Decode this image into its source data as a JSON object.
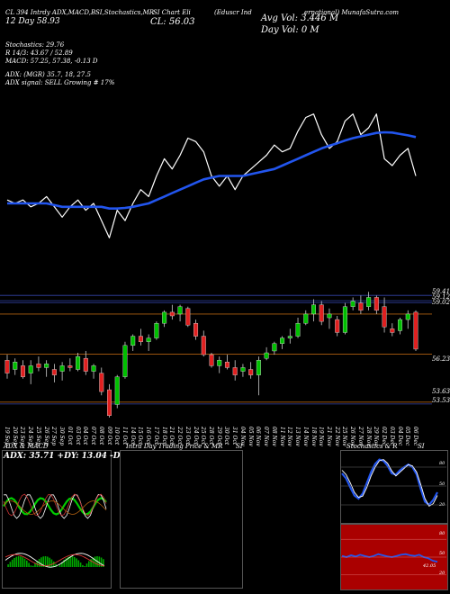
{
  "header": {
    "line1": "CL 394 Intrdy ADX,MACD,B",
    "line1b": "SI,Stochastics,MR",
    "line1c": "SI Chart Eli",
    "line1d": "(Eduscr Ind",
    "line1e": "ernational) MunafaSutra.com",
    "line2": "12 Day  58.93",
    "close": "CL: 56.03",
    "avg_vol": "Avg Vol: 3.446  M",
    "day_vol": "Day Vol: 0  M",
    "stoch": "Stochastics: 29.76",
    "stoch_r": "R 14/3: 43.67 / 52.89",
    "macd": "MACD: 57.25, 57.38, -0.13 D",
    "adx": "ADX:                 (MGR) 35.7, 18, 27.5",
    "adx_signal": "ADX  signal: SELL Growing # 17%"
  },
  "price_axis": [
    "59.41",
    "59.12",
    "59.02",
    "56.23",
    "53.63",
    "53.53"
  ],
  "date_labels": [
    "19 Sep",
    "20 Sep",
    "23 Sep",
    "24 Sep",
    "25 Sep",
    "26 Sep",
    "27 Sep",
    "30 Sep",
    "01 Oct",
    "03 Oct",
    "04 Oct",
    "07 Oct",
    "08 Oct",
    "09 Oct",
    "10 Oct",
    "11 Oct",
    "14 Oct",
    "15 Oct",
    "16 Oct",
    "17 Oct",
    "18 Oct",
    "21 Oct",
    "22 Oct",
    "23 Oct",
    "24 Oct",
    "25 Oct",
    "28 Oct",
    "29 Oct",
    "30 Oct",
    "31 Oct",
    "04 Nov",
    "05 Nov",
    "06 Nov",
    "07 Nov",
    "08 Nov",
    "11 Nov",
    "12 Nov",
    "13 Nov",
    "14 Nov",
    "18 Nov",
    "19 Nov",
    "21 Nov",
    "22 Nov",
    "25 Nov",
    "26 Nov",
    "27 Nov",
    "28 Nov",
    "29 Nov",
    "02 Dec",
    "03 Dec",
    "04 Dec",
    "05 Dec",
    "06 Dec"
  ],
  "panels": {
    "adx_title": "ADX  & MACD",
    "adx_values": "ADX: 35.71  +DY: 13.04  -DY: 27.54",
    "intraday_title": "Intra  Day Trading Price  & MR",
    "intraday_title_b": "SI",
    "stoch_title": "Stochastics & R",
    "stoch_title_b": "SI",
    "stoch_ticks": [
      "80",
      "50",
      "20"
    ],
    "rsi_ticks": [
      "80",
      "50",
      "20"
    ],
    "rsi_value": "42.05"
  },
  "colors": {
    "up": "#00c000",
    "down": "#e02020",
    "ma": "#2255ee",
    "orange": "#b06010"
  },
  "chart_data": [
    {
      "type": "candlestick",
      "series": [
        {
          "name": "",
          "values": []
        }
      ],
      "ohlc": [
        [
          55.9,
          56.2,
          54.9,
          55.2
        ],
        [
          55.4,
          56.0,
          55.1,
          55.8
        ],
        [
          55.6,
          55.9,
          54.9,
          55.0
        ],
        [
          55.2,
          55.9,
          54.6,
          55.6
        ],
        [
          55.7,
          56.1,
          55.3,
          55.5
        ],
        [
          55.5,
          55.9,
          55.0,
          55.7
        ],
        [
          55.4,
          55.7,
          54.7,
          55.1
        ],
        [
          55.3,
          55.8,
          54.8,
          55.6
        ],
        [
          55.6,
          56.0,
          55.3,
          55.5
        ],
        [
          55.4,
          56.3,
          55.3,
          56.1
        ],
        [
          56.0,
          56.4,
          55.1,
          55.3
        ],
        [
          55.3,
          55.7,
          54.9,
          55.6
        ],
        [
          55.2,
          55.5,
          54.0,
          54.2
        ],
        [
          54.3,
          54.6,
          52.8,
          52.9
        ],
        [
          53.5,
          55.1,
          53.3,
          55.0
        ],
        [
          55.0,
          56.9,
          54.9,
          56.7
        ],
        [
          56.7,
          57.3,
          56.4,
          57.2
        ],
        [
          57.2,
          57.6,
          56.7,
          56.9
        ],
        [
          56.9,
          57.3,
          56.4,
          57.1
        ],
        [
          57.1,
          58.0,
          57.0,
          57.9
        ],
        [
          57.9,
          58.6,
          57.7,
          58.5
        ],
        [
          58.5,
          58.9,
          58.1,
          58.3
        ],
        [
          58.4,
          58.9,
          58.0,
          58.8
        ],
        [
          58.7,
          58.8,
          57.7,
          57.8
        ],
        [
          57.9,
          58.1,
          57.0,
          57.2
        ],
        [
          57.2,
          57.5,
          56.1,
          56.2
        ],
        [
          56.2,
          56.3,
          55.5,
          55.6
        ],
        [
          55.6,
          56.1,
          55.2,
          55.9
        ],
        [
          55.8,
          56.2,
          55.4,
          55.5
        ],
        [
          55.5,
          55.9,
          54.8,
          55.1
        ],
        [
          55.3,
          55.7,
          55.0,
          55.5
        ],
        [
          55.4,
          55.8,
          54.9,
          55.1
        ],
        [
          55.1,
          56.1,
          54.0,
          55.9
        ],
        [
          56.0,
          56.6,
          55.9,
          56.3
        ],
        [
          56.4,
          56.9,
          56.2,
          56.8
        ],
        [
          56.8,
          57.2,
          56.5,
          57.1
        ],
        [
          57.1,
          57.6,
          56.8,
          57.2
        ],
        [
          57.2,
          58.2,
          57.1,
          57.9
        ],
        [
          57.9,
          58.6,
          57.8,
          58.4
        ],
        [
          58.4,
          59.2,
          58.0,
          58.9
        ],
        [
          58.9,
          59.1,
          57.8,
          58.0
        ],
        [
          58.2,
          58.7,
          57.6,
          58.4
        ],
        [
          58.1,
          58.3,
          57.2,
          57.4
        ],
        [
          57.4,
          59.0,
          57.3,
          58.8
        ],
        [
          58.8,
          59.3,
          58.6,
          59.1
        ],
        [
          59.0,
          59.4,
          58.4,
          58.6
        ],
        [
          58.8,
          59.6,
          58.6,
          59.3
        ],
        [
          59.3,
          59.4,
          58.4,
          58.6
        ],
        [
          58.8,
          59.3,
          57.4,
          57.7
        ],
        [
          57.6,
          57.9,
          57.2,
          57.4
        ],
        [
          57.5,
          58.2,
          57.3,
          58.1
        ],
        [
          58.1,
          58.6,
          57.6,
          58.4
        ],
        [
          58.5,
          58.6,
          56.4,
          56.5
        ]
      ]
    },
    {
      "type": "line",
      "series": [
        {
          "name": "",
          "values": [
            63,
            62,
            63,
            61,
            62,
            64,
            61,
            58,
            61,
            63,
            60,
            62,
            57,
            52,
            60,
            57,
            62,
            66,
            64,
            70,
            75,
            72,
            76,
            81,
            80,
            77,
            70,
            67,
            70,
            66,
            70,
            72,
            74,
            76,
            79,
            77,
            78,
            83,
            87,
            88,
            82,
            78,
            80,
            86,
            88,
            82,
            84,
            88,
            75,
            73,
            76,
            78,
            70
          ]
        },
        {
          "name": "",
          "values": [
            62,
            62,
            62,
            62,
            62,
            62,
            61.5,
            61,
            61,
            61,
            61,
            61,
            61,
            60.5,
            60.5,
            60.7,
            61,
            61.5,
            62,
            63,
            64,
            65,
            66,
            67,
            68,
            69,
            69.5,
            70,
            70,
            70,
            70,
            70.5,
            71,
            71.5,
            72,
            73,
            74,
            75,
            76,
            77,
            78,
            78.8,
            79.5,
            80.3,
            81,
            81.5,
            82,
            82.5,
            82.7,
            82.6,
            82.2,
            81.8,
            81.3
          ]
        }
      ]
    }
  ]
}
